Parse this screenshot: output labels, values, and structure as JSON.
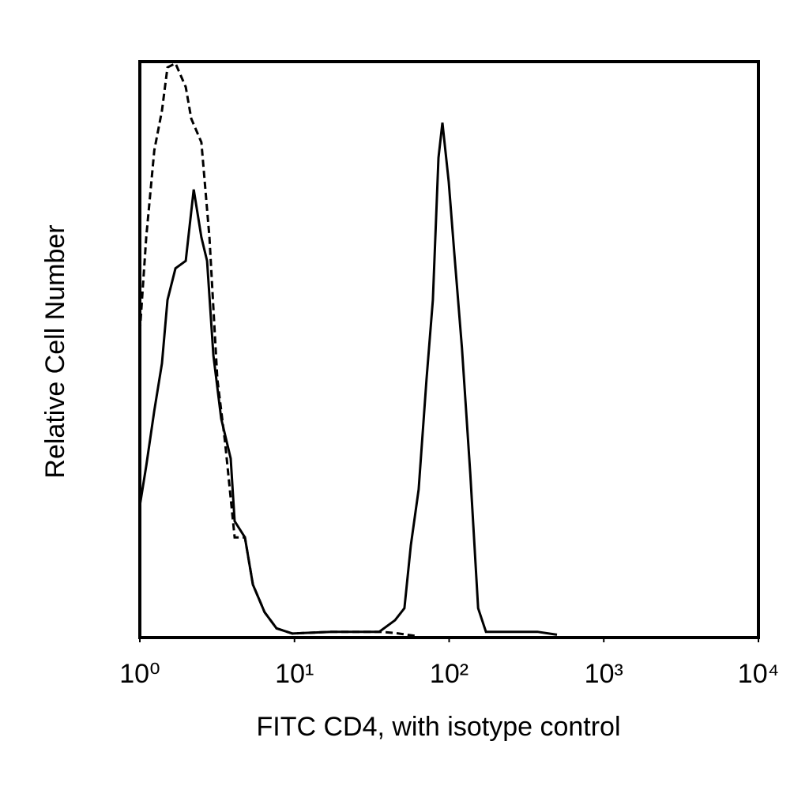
{
  "chart_data": {
    "type": "line",
    "x_label": "FITC CD4, with isotype control",
    "y_label": "Relative Cell Number",
    "xscale": "log",
    "xlim": [
      1,
      10000
    ],
    "xticks": [
      {
        "value": 1,
        "label": "10⁰"
      },
      {
        "value": 10,
        "label": "10¹"
      },
      {
        "value": 100,
        "label": "10²"
      },
      {
        "value": 1000,
        "label": "10³"
      },
      {
        "value": 10000,
        "label": "10⁴"
      }
    ],
    "ylim": [
      0,
      100
    ],
    "series": [
      {
        "color": "#000000",
        "line_style": "solid",
        "x": [
          1.0,
          1.1,
          1.24,
          1.39,
          1.51,
          1.7,
          1.98,
          2.23,
          2.5,
          2.72,
          2.99,
          3.36,
          3.87,
          4.1,
          4.78,
          5.38,
          6.41,
          7.65,
          9.68,
          17.4,
          35.3,
          44.7,
          51.4,
          56.5,
          63.5,
          71.4,
          78.5,
          85.3,
          90.5,
          99.4,
          108,
          121,
          137,
          154,
          173,
          372,
          498
        ],
        "values": [
          22.9,
          29.8,
          39.4,
          47.6,
          58.6,
          64.1,
          65.4,
          77.8,
          69.5,
          65.4,
          49.0,
          38.0,
          31.1,
          20.2,
          17.4,
          9.2,
          4.4,
          1.6,
          0.7,
          1.0,
          1.0,
          3.0,
          5.1,
          16.0,
          25.7,
          44.9,
          58.6,
          83.3,
          89.4,
          79.1,
          66.8,
          50.3,
          28.4,
          5.1,
          1.0,
          1.0,
          0.5
        ]
      },
      {
        "color": "#000000",
        "line_style": "dashed",
        "x": [
          1.0,
          1.1,
          1.24,
          1.39,
          1.51,
          1.7,
          1.98,
          2.15,
          2.5,
          2.82,
          3.17,
          3.56,
          4.1,
          4.78,
          5.38,
          6.41,
          7.65,
          9.68,
          17.4,
          35.3,
          44.7,
          60
        ],
        "values": [
          53.1,
          69.5,
          84.6,
          91.5,
          99.0,
          99.7,
          95.6,
          90.1,
          86.0,
          69.5,
          44.9,
          33.9,
          17.4,
          17.4,
          9.2,
          4.4,
          1.6,
          0.7,
          1.0,
          1.0,
          0.8,
          0.3
        ]
      }
    ]
  }
}
